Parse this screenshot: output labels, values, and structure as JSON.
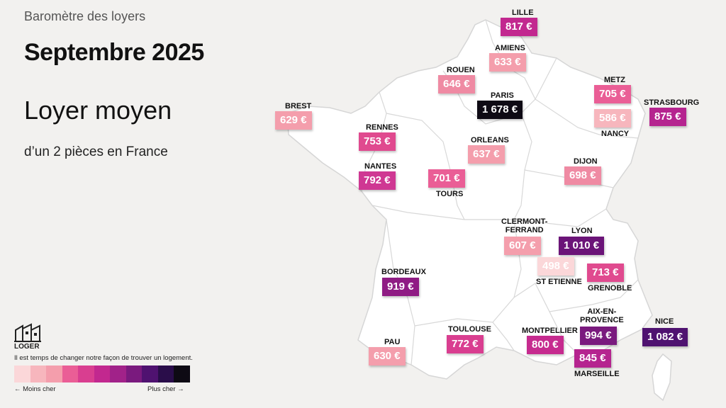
{
  "header": {
    "eyebrow": "Baromètre des loyers",
    "title": "Septembre 2025",
    "subtitle": "Loyer moyen",
    "description": "d’un 2 pièces en France"
  },
  "cities": [
    {
      "id": "lille",
      "name": "LILLE",
      "price": "817 €",
      "value": 817,
      "color": "#c2288f"
    },
    {
      "id": "amiens",
      "name": "AMIENS",
      "price": "633 €",
      "value": 633,
      "color": "#f49eac"
    },
    {
      "id": "rouen",
      "name": "ROUEN",
      "price": "646 €",
      "value": 646,
      "color": "#ef8aa3"
    },
    {
      "id": "paris",
      "name": "PARIS",
      "price": "1 678 €",
      "value": 1678,
      "color": "#0e0a14"
    },
    {
      "id": "brest",
      "name": "BREST",
      "price": "629 €",
      "value": 629,
      "color": "#f49eac"
    },
    {
      "id": "rennes",
      "name": "RENNES",
      "price": "753 €",
      "value": 753,
      "color": "#e04a8f"
    },
    {
      "id": "orleans",
      "name": "ORLEANS",
      "price": "637 €",
      "value": 637,
      "color": "#f49eac"
    },
    {
      "id": "metz",
      "name": "METZ",
      "price": "705 €",
      "value": 705,
      "color": "#ea5e96"
    },
    {
      "id": "nancy",
      "name": "NANCY",
      "price": "586 €",
      "value": 586,
      "color": "#f7b6bd"
    },
    {
      "id": "strasbourg",
      "name": "STRASBOURG",
      "price": "875 €",
      "value": 875,
      "color": "#b5248f"
    },
    {
      "id": "nantes",
      "name": "NANTES",
      "price": "792 €",
      "value": 792,
      "color": "#cf3893"
    },
    {
      "id": "tours",
      "name": "TOURS",
      "price": "701 €",
      "value": 701,
      "color": "#ea5e96"
    },
    {
      "id": "dijon",
      "name": "DIJON",
      "price": "698 €",
      "value": 698,
      "color": "#ef8aa3"
    },
    {
      "id": "clermont",
      "name": "CLERMONT-\nFERRAND",
      "price": "607 €",
      "value": 607,
      "color": "#f49eac"
    },
    {
      "id": "lyon",
      "name": "LYON",
      "price": "1 010 €",
      "value": 1010,
      "color": "#6b1478"
    },
    {
      "id": "saintetienne",
      "name": "ST ETIENNE",
      "price": "498 €",
      "value": 498,
      "color": "#fbd7d9"
    },
    {
      "id": "grenoble",
      "name": "GRENOBLE",
      "price": "713 €",
      "value": 713,
      "color": "#e04a8f"
    },
    {
      "id": "bordeaux",
      "name": "BORDEAUX",
      "price": "919 €",
      "value": 919,
      "color": "#8f1c84"
    },
    {
      "id": "aix",
      "name": "AIX-EN-\nPROVENCE",
      "price": "994 €",
      "value": 994,
      "color": "#7a1a7e"
    },
    {
      "id": "nice",
      "name": "NICE",
      "price": "1 082 €",
      "value": 1082,
      "color": "#4f1270"
    },
    {
      "id": "toulouse",
      "name": "TOULOUSE",
      "price": "772 €",
      "value": 772,
      "color": "#d93e90"
    },
    {
      "id": "montpellier",
      "name": "MONTPELLIER",
      "price": "800 €",
      "value": 800,
      "color": "#c62b8f"
    },
    {
      "id": "marseille",
      "name": "MARSEILLE",
      "price": "845 €",
      "value": 845,
      "color": "#b5248f"
    },
    {
      "id": "pau",
      "name": "PAU",
      "price": "630 €",
      "value": 630,
      "color": "#f49eac"
    }
  ],
  "legend": {
    "logo_text": "LOGER",
    "tagline": "Il est temps de changer notre façon de trouver un logement.",
    "colors": [
      "#fbd7d9",
      "#f7b6bd",
      "#f49eac",
      "#ea5e96",
      "#d93e90",
      "#c2288f",
      "#a12289",
      "#7a1a7e",
      "#4f1270",
      "#2a0d4a",
      "#0e0a14"
    ],
    "low_label": "← Moins cher",
    "high_label": "Plus cher →"
  }
}
